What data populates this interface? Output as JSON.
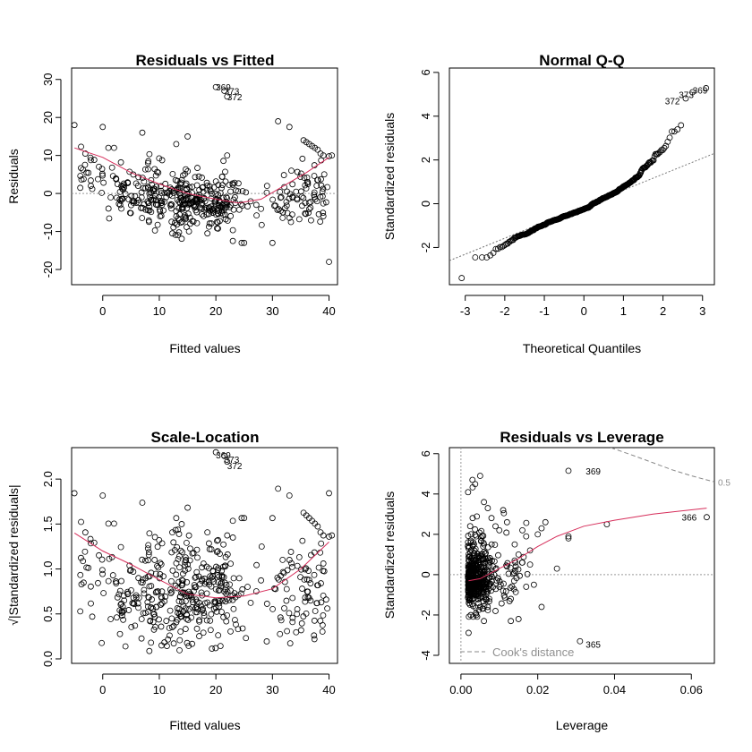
{
  "chart_data": [
    {
      "type": "scatter",
      "id": "rvf",
      "title": "Residuals vs Fitted",
      "xlabel": "Fitted values",
      "ylabel": "Residuals",
      "xlim": [
        -5.5,
        41.5
      ],
      "ylim": [
        -24,
        33
      ],
      "xticks": [
        0,
        10,
        20,
        30,
        40
      ],
      "yticks": [
        -20,
        -10,
        0,
        10,
        20,
        30
      ],
      "reference_line": {
        "axis": "y",
        "value": 0
      },
      "smooth": [
        [
          -5,
          12
        ],
        [
          0,
          9.5
        ],
        [
          5,
          5.5
        ],
        [
          10,
          2.5
        ],
        [
          15,
          0
        ],
        [
          20,
          -1.5
        ],
        [
          24,
          -2.5
        ],
        [
          28,
          -1.5
        ],
        [
          32,
          2
        ],
        [
          36,
          5.5
        ],
        [
          40,
          9.5
        ]
      ],
      "labels": [
        {
          "text": "369",
          "x": 20,
          "y": 28
        },
        {
          "text": "373",
          "x": 21.5,
          "y": 27
        },
        {
          "text": "372",
          "x": 22,
          "y": 25.5
        }
      ]
    },
    {
      "type": "scatter",
      "id": "qq",
      "title": "Normal Q-Q",
      "xlabel": "Theoretical Quantiles",
      "ylabel": "Standardized residuals",
      "xlim": [
        -3.4,
        3.3
      ],
      "ylim": [
        -3.7,
        6.2
      ],
      "xticks": [
        -3,
        -2,
        -1,
        0,
        1,
        2,
        3
      ],
      "yticks": [
        -2,
        0,
        2,
        4,
        6
      ],
      "qq_line": [
        [
          -3.4,
          -2.6
        ],
        [
          3.3,
          2.3
        ]
      ],
      "labels": [
        {
          "text": "369",
          "x": 2.75,
          "y": 5.2
        },
        {
          "text": "373",
          "x": 2.4,
          "y": 5.0
        },
        {
          "text": "372",
          "x": 2.05,
          "y": 4.7
        }
      ]
    },
    {
      "type": "scatter",
      "id": "sl",
      "title": "Scale-Location",
      "xlabel": "Fitted values",
      "ylabel": "√|Standardized residuals|",
      "xlim": [
        -5.5,
        41.5
      ],
      "ylim": [
        -0.05,
        2.35
      ],
      "xticks": [
        0,
        10,
        20,
        30,
        40
      ],
      "yticks": [
        0.0,
        0.5,
        1.0,
        1.5,
        2.0
      ],
      "ytick_labels": [
        "0.0",
        "0.5",
        "1.0",
        "1.5",
        "2.0"
      ],
      "smooth": [
        [
          -5,
          1.4
        ],
        [
          0,
          1.2
        ],
        [
          5,
          1.05
        ],
        [
          10,
          0.88
        ],
        [
          15,
          0.72
        ],
        [
          20,
          0.68
        ],
        [
          25,
          0.7
        ],
        [
          30,
          0.78
        ],
        [
          35,
          1.0
        ],
        [
          40,
          1.3
        ]
      ],
      "labels": [
        {
          "text": "369",
          "x": 20,
          "y": 2.27
        },
        {
          "text": "373",
          "x": 21.5,
          "y": 2.22
        },
        {
          "text": "372",
          "x": 22,
          "y": 2.15
        }
      ]
    },
    {
      "type": "scatter",
      "id": "rvl",
      "title": "Residuals vs Leverage",
      "xlabel": "Leverage",
      "ylabel": "Standardized residuals",
      "xlim": [
        -0.003,
        0.066
      ],
      "ylim": [
        -4.4,
        6.3
      ],
      "xticks": [
        0.0,
        0.02,
        0.04,
        0.06
      ],
      "xtick_labels": [
        "0.00",
        "0.02",
        "0.04",
        "0.06"
      ],
      "yticks": [
        -4,
        -2,
        0,
        2,
        4,
        6
      ],
      "smooth": [
        [
          0.002,
          -0.3
        ],
        [
          0.005,
          -0.2
        ],
        [
          0.01,
          0.3
        ],
        [
          0.015,
          0.8
        ],
        [
          0.02,
          1.4
        ],
        [
          0.025,
          1.9
        ],
        [
          0.032,
          2.4
        ],
        [
          0.04,
          2.7
        ],
        [
          0.05,
          3.0
        ],
        [
          0.064,
          3.3
        ]
      ],
      "cooks_curve": [
        [
          0.039,
          6.3
        ],
        [
          0.045,
          5.9
        ],
        [
          0.05,
          5.55
        ],
        [
          0.055,
          5.2
        ],
        [
          0.06,
          4.9
        ],
        [
          0.066,
          4.6
        ]
      ],
      "cooks_label": "0.5",
      "legend": "Cook's distance",
      "labels": [
        {
          "text": "369",
          "x": 0.0325,
          "y": 5.15
        },
        {
          "text": "366",
          "x": 0.0575,
          "y": 2.85
        },
        {
          "text": "365",
          "x": 0.0325,
          "y": -3.45
        }
      ],
      "points": [
        [
          0.028,
          5.15
        ],
        [
          0.064,
          2.85
        ],
        [
          0.031,
          -3.3
        ],
        [
          0.003,
          4.7
        ],
        [
          0.005,
          4.9
        ],
        [
          0.038,
          2.5
        ],
        [
          0.028,
          1.9
        ],
        [
          0.028,
          1.8
        ],
        [
          0.025,
          0.3
        ],
        [
          0.021,
          -1.6
        ],
        [
          0.019,
          -0.5
        ],
        [
          0.015,
          -2.2
        ],
        [
          0.013,
          -2.3
        ],
        [
          0.02,
          2.0
        ],
        [
          0.021,
          2.3
        ],
        [
          0.022,
          2.6
        ],
        [
          0.016,
          2.2
        ],
        [
          0.017,
          1.9
        ],
        [
          0.011,
          3.2
        ],
        [
          0.014,
          1.5
        ],
        [
          0.012,
          2.6
        ],
        [
          0.01,
          2.2
        ],
        [
          0.009,
          2.4
        ],
        [
          0.006,
          3.6
        ],
        [
          0.007,
          3.3
        ],
        [
          0.008,
          1.5
        ],
        [
          0.009,
          -1.8
        ],
        [
          0.013,
          -1.2
        ],
        [
          0.015,
          1.0
        ],
        [
          0.018,
          1.2
        ],
        [
          0.016,
          0.6
        ],
        [
          0.014,
          0.7
        ],
        [
          0.012,
          0.4
        ],
        [
          0.011,
          -0.8
        ],
        [
          0.01,
          -0.6
        ],
        [
          0.017,
          -0.6
        ],
        [
          0.018,
          0.5
        ],
        [
          0.004,
          -2.0
        ],
        [
          0.006,
          -2.3
        ],
        [
          0.005,
          -1.6
        ],
        [
          0.004,
          1.9
        ],
        [
          0.006,
          1.5
        ]
      ]
    }
  ]
}
